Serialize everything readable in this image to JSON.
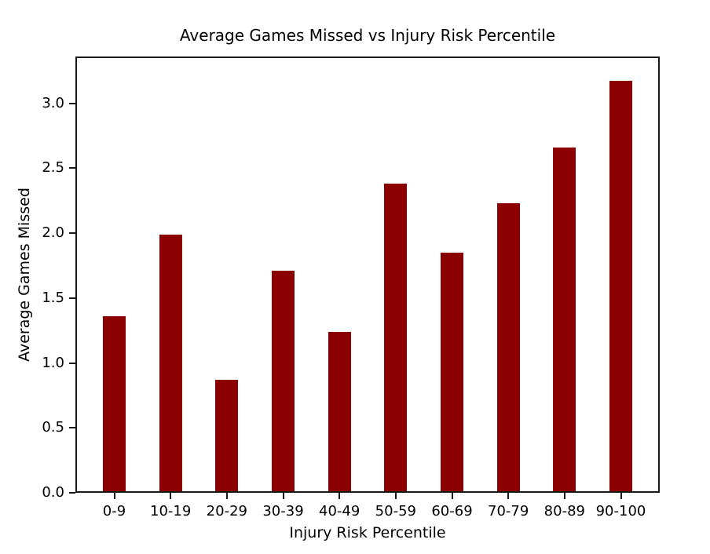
{
  "chart_data": {
    "type": "bar",
    "title": "Average Games Missed vs Injury Risk Percentile",
    "xlabel": "Injury Risk Percentile",
    "ylabel": "Average Games Missed",
    "categories": [
      "0-9",
      "10-19",
      "20-29",
      "30-39",
      "40-49",
      "50-59",
      "60-69",
      "70-79",
      "80-89",
      "90-100"
    ],
    "values": [
      1.36,
      1.99,
      0.87,
      1.71,
      1.24,
      2.38,
      1.85,
      2.23,
      2.66,
      3.17
    ],
    "bar_color": "#8b0000",
    "axis_color": "#1a1a1a",
    "text_color": "#000000",
    "background_color": "#ffffff",
    "ylim": [
      0,
      3.36
    ],
    "yticks": [
      0.0,
      0.5,
      1.0,
      1.5,
      2.0,
      2.5,
      3.0
    ],
    "ytick_labels": [
      "0.0",
      "0.5",
      "1.0",
      "1.5",
      "2.0",
      "2.5",
      "3.0"
    ],
    "grid": false,
    "legend": null
  }
}
